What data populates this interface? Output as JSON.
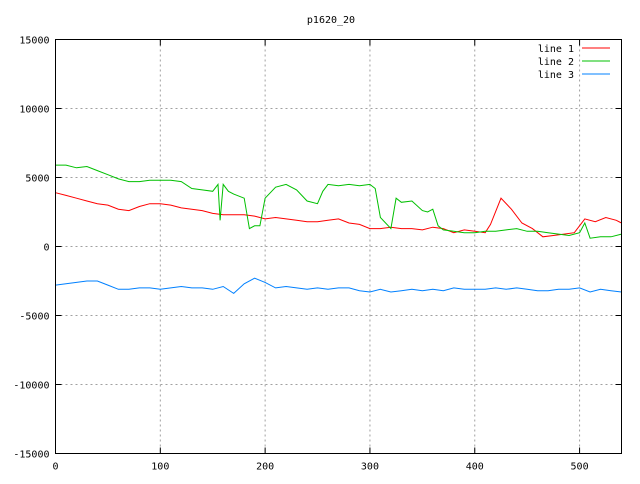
{
  "chart_data": {
    "type": "line",
    "title": "p1620_20",
    "xlabel": "",
    "ylabel": "",
    "xlim": [
      0,
      540
    ],
    "ylim": [
      -15000,
      15000
    ],
    "x_ticks": [
      0,
      100,
      200,
      300,
      400,
      500
    ],
    "y_ticks": [
      -15000,
      -10000,
      -5000,
      0,
      5000,
      10000,
      15000
    ],
    "grid": true,
    "legend_position": "top-right",
    "series": [
      {
        "name": "line 1",
        "color": "#ff0000",
        "x": [
          0,
          10,
          20,
          30,
          40,
          50,
          60,
          70,
          80,
          90,
          100,
          110,
          120,
          130,
          140,
          150,
          160,
          170,
          180,
          190,
          200,
          210,
          220,
          230,
          240,
          250,
          260,
          270,
          280,
          290,
          300,
          310,
          320,
          330,
          340,
          350,
          360,
          370,
          380,
          390,
          400,
          410,
          415,
          425,
          435,
          445,
          455,
          465,
          475,
          485,
          495,
          505,
          515,
          525,
          535,
          540
        ],
        "y": [
          3900,
          3700,
          3500,
          3300,
          3100,
          3000,
          2700,
          2600,
          2900,
          3100,
          3100,
          3000,
          2800,
          2700,
          2600,
          2400,
          2300,
          2300,
          2300,
          2200,
          2000,
          2100,
          2000,
          1900,
          1800,
          1800,
          1900,
          2000,
          1700,
          1600,
          1300,
          1300,
          1400,
          1300,
          1300,
          1200,
          1400,
          1300,
          1000,
          1200,
          1100,
          1000,
          1600,
          3500,
          2700,
          1700,
          1300,
          700,
          800,
          900,
          1000,
          2000,
          1800,
          2100,
          1900,
          1700
        ]
      },
      {
        "name": "line 2",
        "color": "#00c000",
        "x": [
          0,
          10,
          20,
          30,
          40,
          50,
          60,
          70,
          80,
          90,
          100,
          110,
          120,
          130,
          140,
          150,
          155,
          157,
          160,
          165,
          170,
          180,
          185,
          190,
          195,
          200,
          210,
          220,
          230,
          240,
          250,
          255,
          260,
          270,
          280,
          290,
          300,
          305,
          310,
          320,
          325,
          330,
          340,
          350,
          355,
          360,
          365,
          370,
          380,
          390,
          400,
          410,
          420,
          430,
          440,
          450,
          460,
          470,
          480,
          490,
          500,
          505,
          510,
          520,
          530,
          540
        ],
        "y": [
          5900,
          5900,
          5700,
          5800,
          5500,
          5200,
          4900,
          4700,
          4700,
          4800,
          4800,
          4800,
          4700,
          4200,
          4100,
          4000,
          4500,
          1900,
          4500,
          4000,
          3800,
          3500,
          1300,
          1500,
          1500,
          3500,
          4300,
          4500,
          4100,
          3300,
          3100,
          4000,
          4500,
          4400,
          4500,
          4400,
          4500,
          4200,
          2100,
          1300,
          3500,
          3200,
          3300,
          2600,
          2500,
          2700,
          1500,
          1200,
          1100,
          1000,
          1000,
          1100,
          1100,
          1200,
          1300,
          1100,
          1100,
          1000,
          900,
          800,
          1000,
          1700,
          600,
          700,
          700,
          900
        ]
      },
      {
        "name": "line 3",
        "color": "#0080ff",
        "x": [
          0,
          10,
          20,
          30,
          40,
          50,
          60,
          70,
          80,
          90,
          100,
          110,
          120,
          130,
          140,
          150,
          160,
          170,
          180,
          190,
          200,
          210,
          220,
          230,
          240,
          250,
          260,
          270,
          280,
          290,
          300,
          310,
          320,
          330,
          340,
          350,
          360,
          370,
          380,
          390,
          400,
          410,
          420,
          430,
          440,
          450,
          460,
          470,
          480,
          490,
          500,
          510,
          520,
          530,
          540
        ],
        "y": [
          -2800,
          -2700,
          -2600,
          -2500,
          -2500,
          -2800,
          -3100,
          -3100,
          -3000,
          -3000,
          -3100,
          -3000,
          -2900,
          -3000,
          -3000,
          -3100,
          -2900,
          -3400,
          -2700,
          -2300,
          -2600,
          -3000,
          -2900,
          -3000,
          -3100,
          -3000,
          -3100,
          -3000,
          -3000,
          -3200,
          -3300,
          -3100,
          -3300,
          -3200,
          -3100,
          -3200,
          -3100,
          -3200,
          -3000,
          -3100,
          -3100,
          -3100,
          -3000,
          -3100,
          -3000,
          -3100,
          -3200,
          -3200,
          -3100,
          -3100,
          -3000,
          -3300,
          -3100,
          -3200,
          -3300
        ]
      }
    ]
  }
}
